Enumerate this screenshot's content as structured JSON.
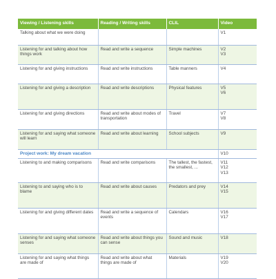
{
  "headers": {
    "col1": "Viewing / Listening skills",
    "col2": "Reading / Writing skills",
    "col3": "CLIL",
    "col4": "Video"
  },
  "rows": [
    {
      "listening": "Talking about what we were doing",
      "reading": "",
      "clil": "",
      "video": [
        "V1"
      ]
    },
    {
      "listening": "Listening for and talking about how things work",
      "reading": "Read and write a sequence",
      "clil": "Simple machines",
      "video": [
        "V2",
        "V3"
      ]
    },
    {
      "listening": "Listening for and giving instructions",
      "reading": "Read and write instructions",
      "clil": "Table manners",
      "video": [
        "V4"
      ]
    },
    {
      "listening": "Listening for and giving a description",
      "reading": "Read and write descriptions",
      "clil": "Physical features",
      "video": [
        "V5",
        "V6"
      ]
    },
    {
      "listening": "Listening for and giving directions",
      "reading": "Read and write about modes of transportation",
      "clil": "Travel",
      "video": [
        "V7",
        "V8"
      ]
    },
    {
      "listening": "Listening for and saying what someone will learn",
      "reading": "Read and write about learning",
      "clil": "School subjects",
      "video": [
        "V9"
      ]
    },
    {
      "project": "Project work: My dream vacation",
      "video": [
        "V10"
      ]
    },
    {
      "listening": "Listening to and making comparisons",
      "reading": "Read and write comparisons",
      "clil": "The tallest, the fastest, the smallest, ...",
      "video": [
        "V11",
        "V12",
        "V13"
      ]
    },
    {
      "listening": "Listening to and saying who is to blame",
      "reading": "Read and write about causes",
      "clil": "Predators and prey",
      "video": [
        "V14",
        "V15"
      ]
    },
    {
      "listening": "Listening for and giving different dates",
      "reading": "Read and write a sequence of events",
      "clil": "Calendars",
      "video": [
        "V16",
        "V17"
      ]
    },
    {
      "listening": "Listening for and saying what someone senses",
      "reading": "Read and write about things you can sense",
      "clil": "Sound and music",
      "video": [
        "V18"
      ]
    },
    {
      "listening": "Listening for and saying what things are made of",
      "reading": "Read and write about what things are made of",
      "clil": "Materials",
      "video": [
        "V19",
        "V20"
      ]
    }
  ]
}
